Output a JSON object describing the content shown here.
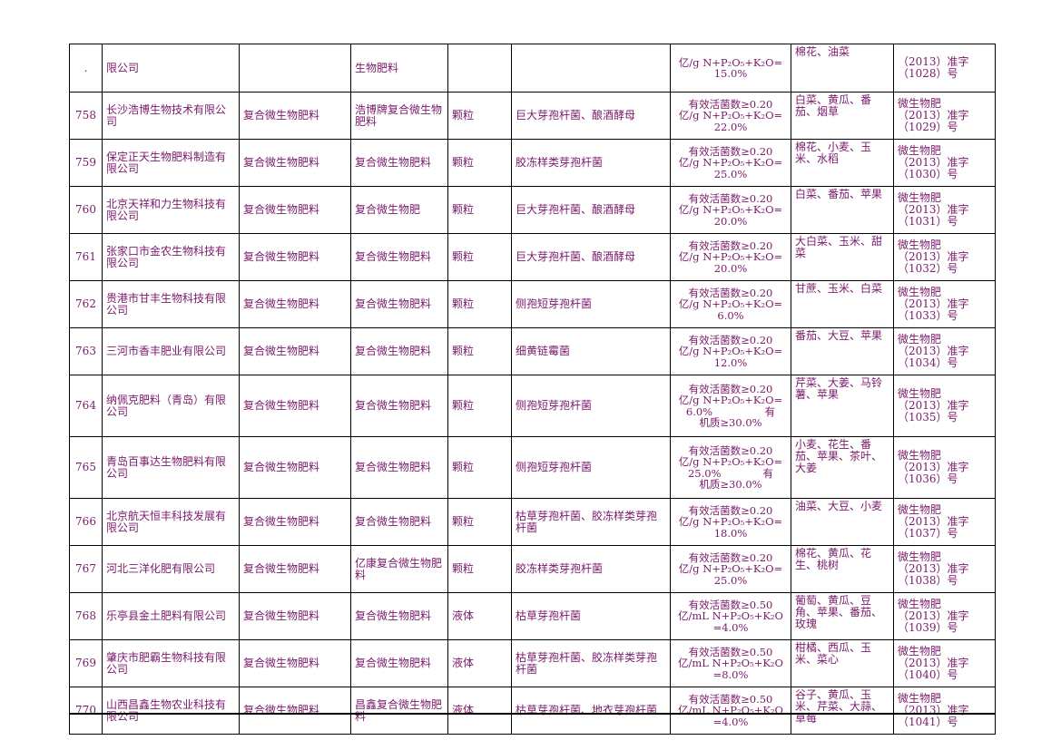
{
  "rows": [
    {
      "no": ".",
      "company": "限公司",
      "type": "",
      "product": "生物肥料",
      "form": "",
      "strain": "",
      "tech": [
        "亿/g N+P₂O₅+K₂O=",
        "15.0%"
      ],
      "crops": "棉花、油菜",
      "reg": [
        "（2013）准字",
        "（1028）号"
      ]
    },
    {
      "no": "758",
      "company": "长沙浩博生物技术有限公司",
      "type": "复合微生物肥料",
      "product": "浩博牌复合微生物肥料",
      "form": "颗粒",
      "strain": "巨大芽孢杆菌、酿酒酵母",
      "tech": [
        "有效活菌数≥0.20",
        "亿/g N+P₂O₅+K₂O=",
        "22.0%"
      ],
      "crops": "白菜、黄瓜、番茄、烟草",
      "reg": [
        "微生物肥",
        "（2013）准字",
        "（1029）号"
      ]
    },
    {
      "no": "759",
      "company": "保定正天生物肥料制造有限公司",
      "type": "复合微生物肥料",
      "product": "复合微生物肥料",
      "form": "颗粒",
      "strain": "胶冻样类芽孢杆菌",
      "tech": [
        "有效活菌数≥0.20",
        "亿/g N+P₂O₅+K₂O=",
        "25.0%"
      ],
      "crops": "棉花、小麦、玉米、水稻",
      "reg": [
        "微生物肥",
        "（2013）准字",
        "（1030）号"
      ]
    },
    {
      "no": "760",
      "company": "北京天祥和力生物科技有限公司",
      "type": "复合微生物肥料",
      "product": "复合微生物肥",
      "form": "颗粒",
      "strain": "巨大芽孢杆菌、酿酒酵母",
      "tech": [
        "有效活菌数≥0.20",
        "亿/g N+P₂O₅+K₂O=",
        "20.0%"
      ],
      "crops": "白菜、番茄、苹果",
      "reg": [
        "微生物肥",
        "（2013）准字",
        "（1031）号"
      ]
    },
    {
      "no": "761",
      "company": "张家口市金农生物科技有限公司",
      "type": "复合微生物肥料",
      "product": "复合微生物肥料",
      "form": "颗粒",
      "strain": "巨大芽孢杆菌、酿酒酵母",
      "tech": [
        "有效活菌数≥0.20",
        "亿/g N+P₂O₅+K₂O=",
        "20.0%"
      ],
      "crops": "大白菜、玉米、甜菜",
      "reg": [
        "微生物肥",
        "（2013）准字",
        "（1032）号"
      ]
    },
    {
      "no": "762",
      "company": "贵港市甘丰生物科技有限公司",
      "type": "复合微生物肥料",
      "product": "复合微生物肥料",
      "form": "颗粒",
      "strain": "侧孢短芽孢杆菌",
      "tech": [
        "有效活菌数≥0.20",
        "亿/g N+P₂O₅+K₂O=",
        "6.0%"
      ],
      "crops": "甘蔗、玉米、白菜",
      "reg": [
        "微生物肥",
        "（2013）准字",
        "（1033）号"
      ]
    },
    {
      "no": "763",
      "company": "三河市香丰肥业有限公司",
      "type": "复合微生物肥料",
      "product": "复合微生物肥料",
      "form": "颗粒",
      "strain": "细黄链霉菌",
      "tech": [
        "有效活菌数≥0.20",
        "亿/g N+P₂O₅+K₂O=",
        "12.0%"
      ],
      "crops": "番茄、大豆、苹果",
      "reg": [
        "微生物肥",
        "（2013）准字",
        "（1034）号"
      ]
    },
    {
      "no": "764",
      "company": "纳佩克肥料（青岛）有限公司",
      "type": "复合微生物肥料",
      "product": "复合微生物肥料",
      "form": "颗粒",
      "strain": "侧孢短芽孢杆菌",
      "tech": [
        "有效活菌数≥0.20",
        "亿/g N+P₂O₅+K₂O=",
        "6.0%　　　　　有",
        "机质≥30.0%"
      ],
      "crops": "芹菜、大姜、马铃薯、苹果",
      "reg": [
        "微生物肥",
        "（2013）准字",
        "（1035）号"
      ]
    },
    {
      "no": "765",
      "company": "青岛百事达生物肥料有限公司",
      "type": "复合微生物肥料",
      "product": "复合微生物肥料",
      "form": "颗粒",
      "strain": "侧孢短芽孢杆菌",
      "tech": [
        "有效活菌数≥0.20",
        "亿/g N+P₂O₅+K₂O=",
        "25.0%　　　　有",
        "机质≥30.0%"
      ],
      "crops": "小麦、花生、番茄、苹果、茶叶、大姜",
      "reg": [
        "微生物肥",
        "（2013）准字",
        "（1036）号"
      ]
    },
    {
      "no": "766",
      "company": "北京航天恒丰科技发展有限公司",
      "type": "复合微生物肥料",
      "product": "复合微生物肥料",
      "form": "颗粒",
      "strain": "枯草芽孢杆菌、胶冻样类芽孢杆菌",
      "tech": [
        "有效活菌数≥0.20",
        "亿/g N+P₂O₅+K₂O=",
        "18.0%"
      ],
      "crops": "油菜、大豆、小麦",
      "reg": [
        "微生物肥",
        "（2013）准字",
        "（1037）号"
      ]
    },
    {
      "no": "767",
      "company": "河北三洋化肥有限公司",
      "type": "复合微生物肥料",
      "product": "亿康复合微生物肥料",
      "form": "颗粒",
      "strain": "胶冻样类芽孢杆菌",
      "tech": [
        "有效活菌数≥0.20",
        "亿/g N+P₂O₅+K₂O=",
        "25.0%"
      ],
      "crops": "棉花、黄瓜、花生、桃树",
      "reg": [
        "微生物肥",
        "（2013）准字",
        "（1038）号"
      ]
    },
    {
      "no": "768",
      "company": "乐亭县金土肥料有限公司",
      "type": "复合微生物肥料",
      "product": "复合微生物肥料",
      "form": "液体",
      "strain": "枯草芽孢杆菌",
      "tech": [
        "有效活菌数≥0.50",
        "亿/mL N+P₂O₅+K₂O",
        "=4.0%"
      ],
      "crops": "葡萄、黄瓜、豆角、苹果、番茄、玫瑰",
      "reg": [
        "微生物肥",
        "（2013）准字",
        "（1039）号"
      ]
    },
    {
      "no": "769",
      "company": "肇庆市肥霸生物科技有限公司",
      "type": "复合微生物肥料",
      "product": "复合微生物肥料",
      "form": "液体",
      "strain": "枯草芽孢杆菌、胶冻样类芽孢杆菌",
      "tech": [
        "有效活菌数≥0.50",
        "亿/mL N+P₂O₅+K₂O",
        "=8.0%"
      ],
      "crops": "柑橘、西瓜、玉米、菜心",
      "reg": [
        "微生物肥",
        "（2013）准字",
        "（1040）号"
      ]
    },
    {
      "no": "770",
      "company": "山西昌鑫生物农业科技有限公司",
      "type": "复合微生物肥料",
      "product": "昌鑫复合微生物肥料",
      "form": "液体",
      "strain": "枯草芽孢杆菌、地衣芽孢杆菌",
      "tech": [
        "有效活菌数≥0.50",
        "亿/mL N+P₂O₅+K₂O",
        "=4.0%"
      ],
      "crops": "谷子、黄瓜、玉米、芹菜、大蒜、草莓",
      "reg": [
        "微生物肥",
        "（2013）准字",
        "（1041）号"
      ]
    }
  ]
}
